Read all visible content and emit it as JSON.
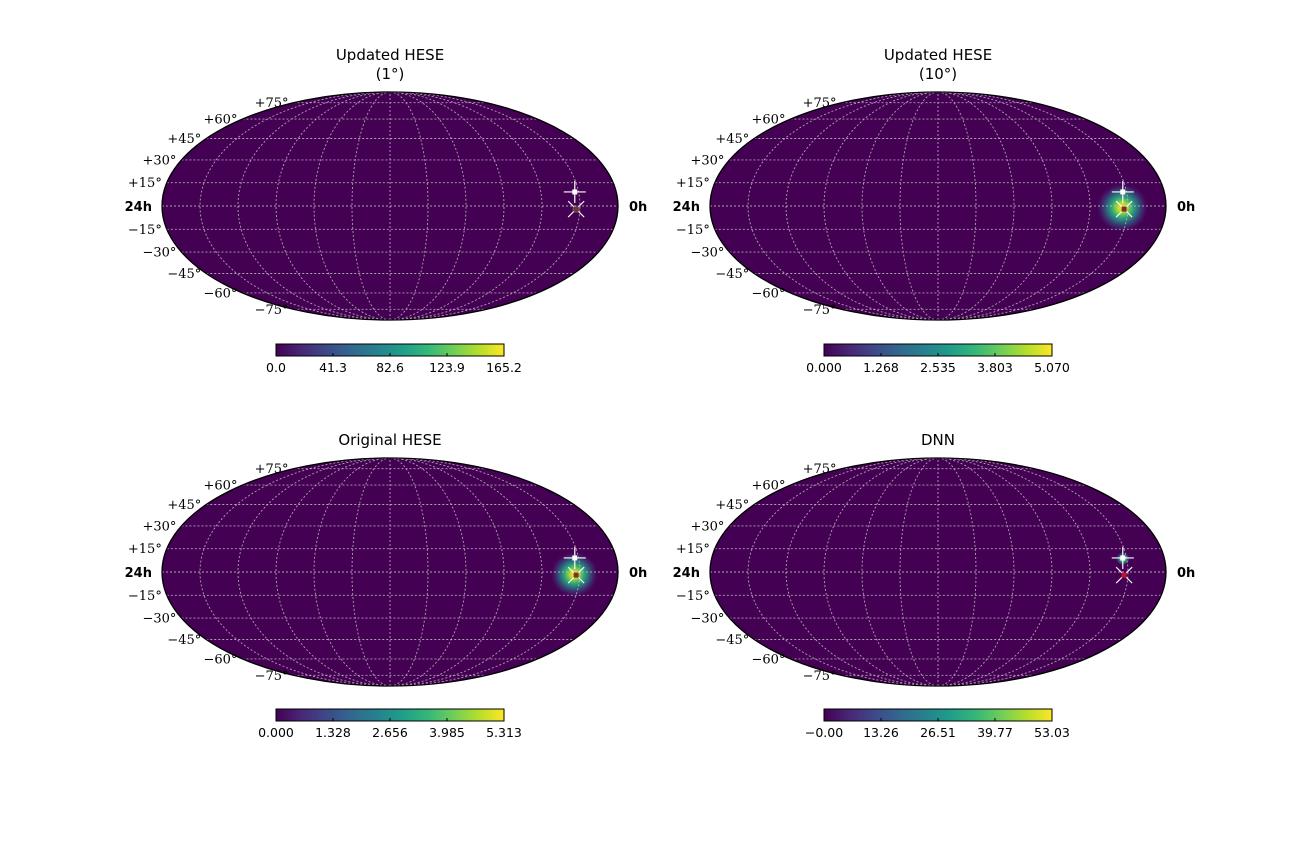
{
  "colors": {
    "background": "#440154",
    "grid": "#bfbfbf",
    "frame": "#000000",
    "marker_white": "#ffffff",
    "marker_red": "#c8102e",
    "colormap": [
      "#440154",
      "#482777",
      "#3e4989",
      "#31688e",
      "#26828e",
      "#1f9e89",
      "#35b779",
      "#6ece58",
      "#b5de2b",
      "#fde725"
    ]
  },
  "axis_labels": {
    "ra_left": "24h",
    "ra_right": "0h",
    "dec_upper": [
      "+15°",
      "+30°",
      "+45°",
      "+60°",
      "+75°"
    ],
    "dec_lower": [
      "−15°",
      "−30°",
      "−45°",
      "−60°",
      "−75°"
    ]
  },
  "chart_data": [
    {
      "type": "heatmap",
      "projection": "mollweide",
      "title": "Updated HESE\n(1°)",
      "title_lines": [
        "Updated HESE",
        "(1°)"
      ],
      "colorbar": {
        "range": [
          0.0,
          165.2
        ],
        "ticks": [
          "0.0",
          "41.3",
          "82.6",
          "123.9",
          "165.2"
        ]
      },
      "hotspot": {
        "ra_h": 2.2,
        "dec_deg": -2.0,
        "sigma_deg": 1.2,
        "peak": 1.0
      },
      "markers": [
        {
          "kind": "plus",
          "ra_h": 2.2,
          "dec_deg": 9.0
        },
        {
          "kind": "x",
          "ra_h": 2.2,
          "dec_deg": -2.0
        }
      ]
    },
    {
      "type": "heatmap",
      "projection": "mollweide",
      "title": "Updated HESE\n(10°)",
      "title_lines": [
        "Updated HESE",
        "(10°)"
      ],
      "colorbar": {
        "range": [
          0.0,
          5.07
        ],
        "ticks": [
          "0.000",
          "1.268",
          "2.535",
          "3.803",
          "5.070"
        ]
      },
      "hotspot": {
        "ra_h": 2.3,
        "dec_deg": -1.0,
        "sigma_deg": 6.5,
        "peak": 1.0
      },
      "markers": [
        {
          "kind": "plus",
          "ra_h": 2.2,
          "dec_deg": 9.0
        },
        {
          "kind": "x",
          "ra_h": 2.2,
          "dec_deg": -2.0
        }
      ]
    },
    {
      "type": "heatmap",
      "projection": "mollweide",
      "title": "Original HESE",
      "title_lines": [
        "Original HESE"
      ],
      "colorbar": {
        "range": [
          0.0,
          5.313
        ],
        "ticks": [
          "0.000",
          "1.328",
          "2.656",
          "3.985",
          "5.313"
        ]
      },
      "hotspot": {
        "ra_h": 2.3,
        "dec_deg": -1.5,
        "sigma_deg": 6.0,
        "peak": 1.0
      },
      "markers": [
        {
          "kind": "plus",
          "ra_h": 2.2,
          "dec_deg": 9.0
        },
        {
          "kind": "x",
          "ra_h": 2.2,
          "dec_deg": -2.0
        }
      ]
    },
    {
      "type": "heatmap",
      "projection": "mollweide",
      "title": "DNN",
      "title_lines": [
        "DNN"
      ],
      "colorbar": {
        "range": [
          -0.0,
          53.03
        ],
        "ticks": [
          "−0.00",
          "13.26",
          "26.51",
          "39.77",
          "53.03"
        ]
      },
      "hotspot": {
        "ra_h": 2.2,
        "dec_deg": 8.5,
        "sigma_deg": 1.8,
        "peak": 1.0
      },
      "markers": [
        {
          "kind": "plus",
          "ra_h": 2.2,
          "dec_deg": 9.0
        },
        {
          "kind": "x-red",
          "ra_h": 2.2,
          "dec_deg": -2.0
        }
      ]
    }
  ]
}
